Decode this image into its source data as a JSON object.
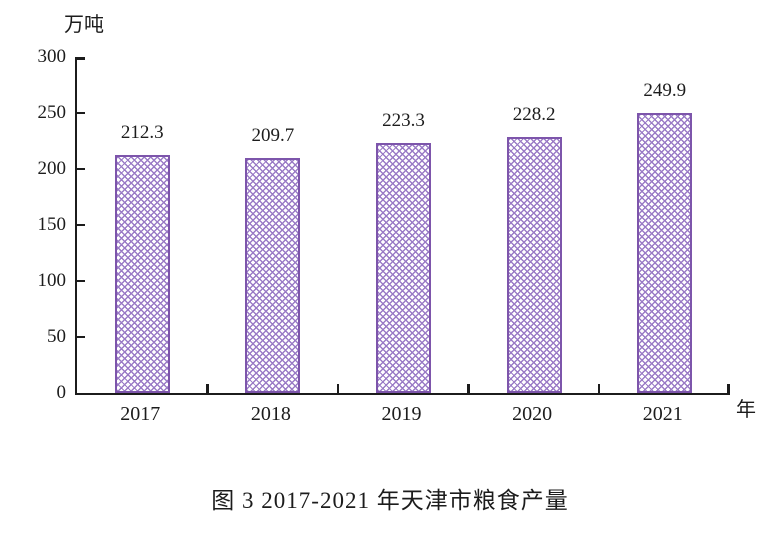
{
  "chart_data": {
    "type": "bar",
    "title": "图 3 2017-2021 年天津市粮食产量",
    "ylabel": "万吨",
    "xlabel_suffix": "年",
    "categories": [
      "2017",
      "2018",
      "2019",
      "2020",
      "2021"
    ],
    "values": [
      212.3,
      209.7,
      223.3,
      228.2,
      249.9
    ],
    "value_labels": [
      "212.3",
      "209.7",
      "223.3",
      "228.2",
      "249.9"
    ],
    "ylim": [
      0,
      300
    ],
    "yticks": [
      0,
      50,
      100,
      150,
      200,
      250,
      300
    ],
    "grid": false,
    "legend_position": "none",
    "colors": {
      "bar_border": "#7d55ab",
      "bar_hatch": "#9a7bc6",
      "axis": "#1c1c1c",
      "text": "#1c1c1c",
      "background": "#ffffff"
    }
  }
}
